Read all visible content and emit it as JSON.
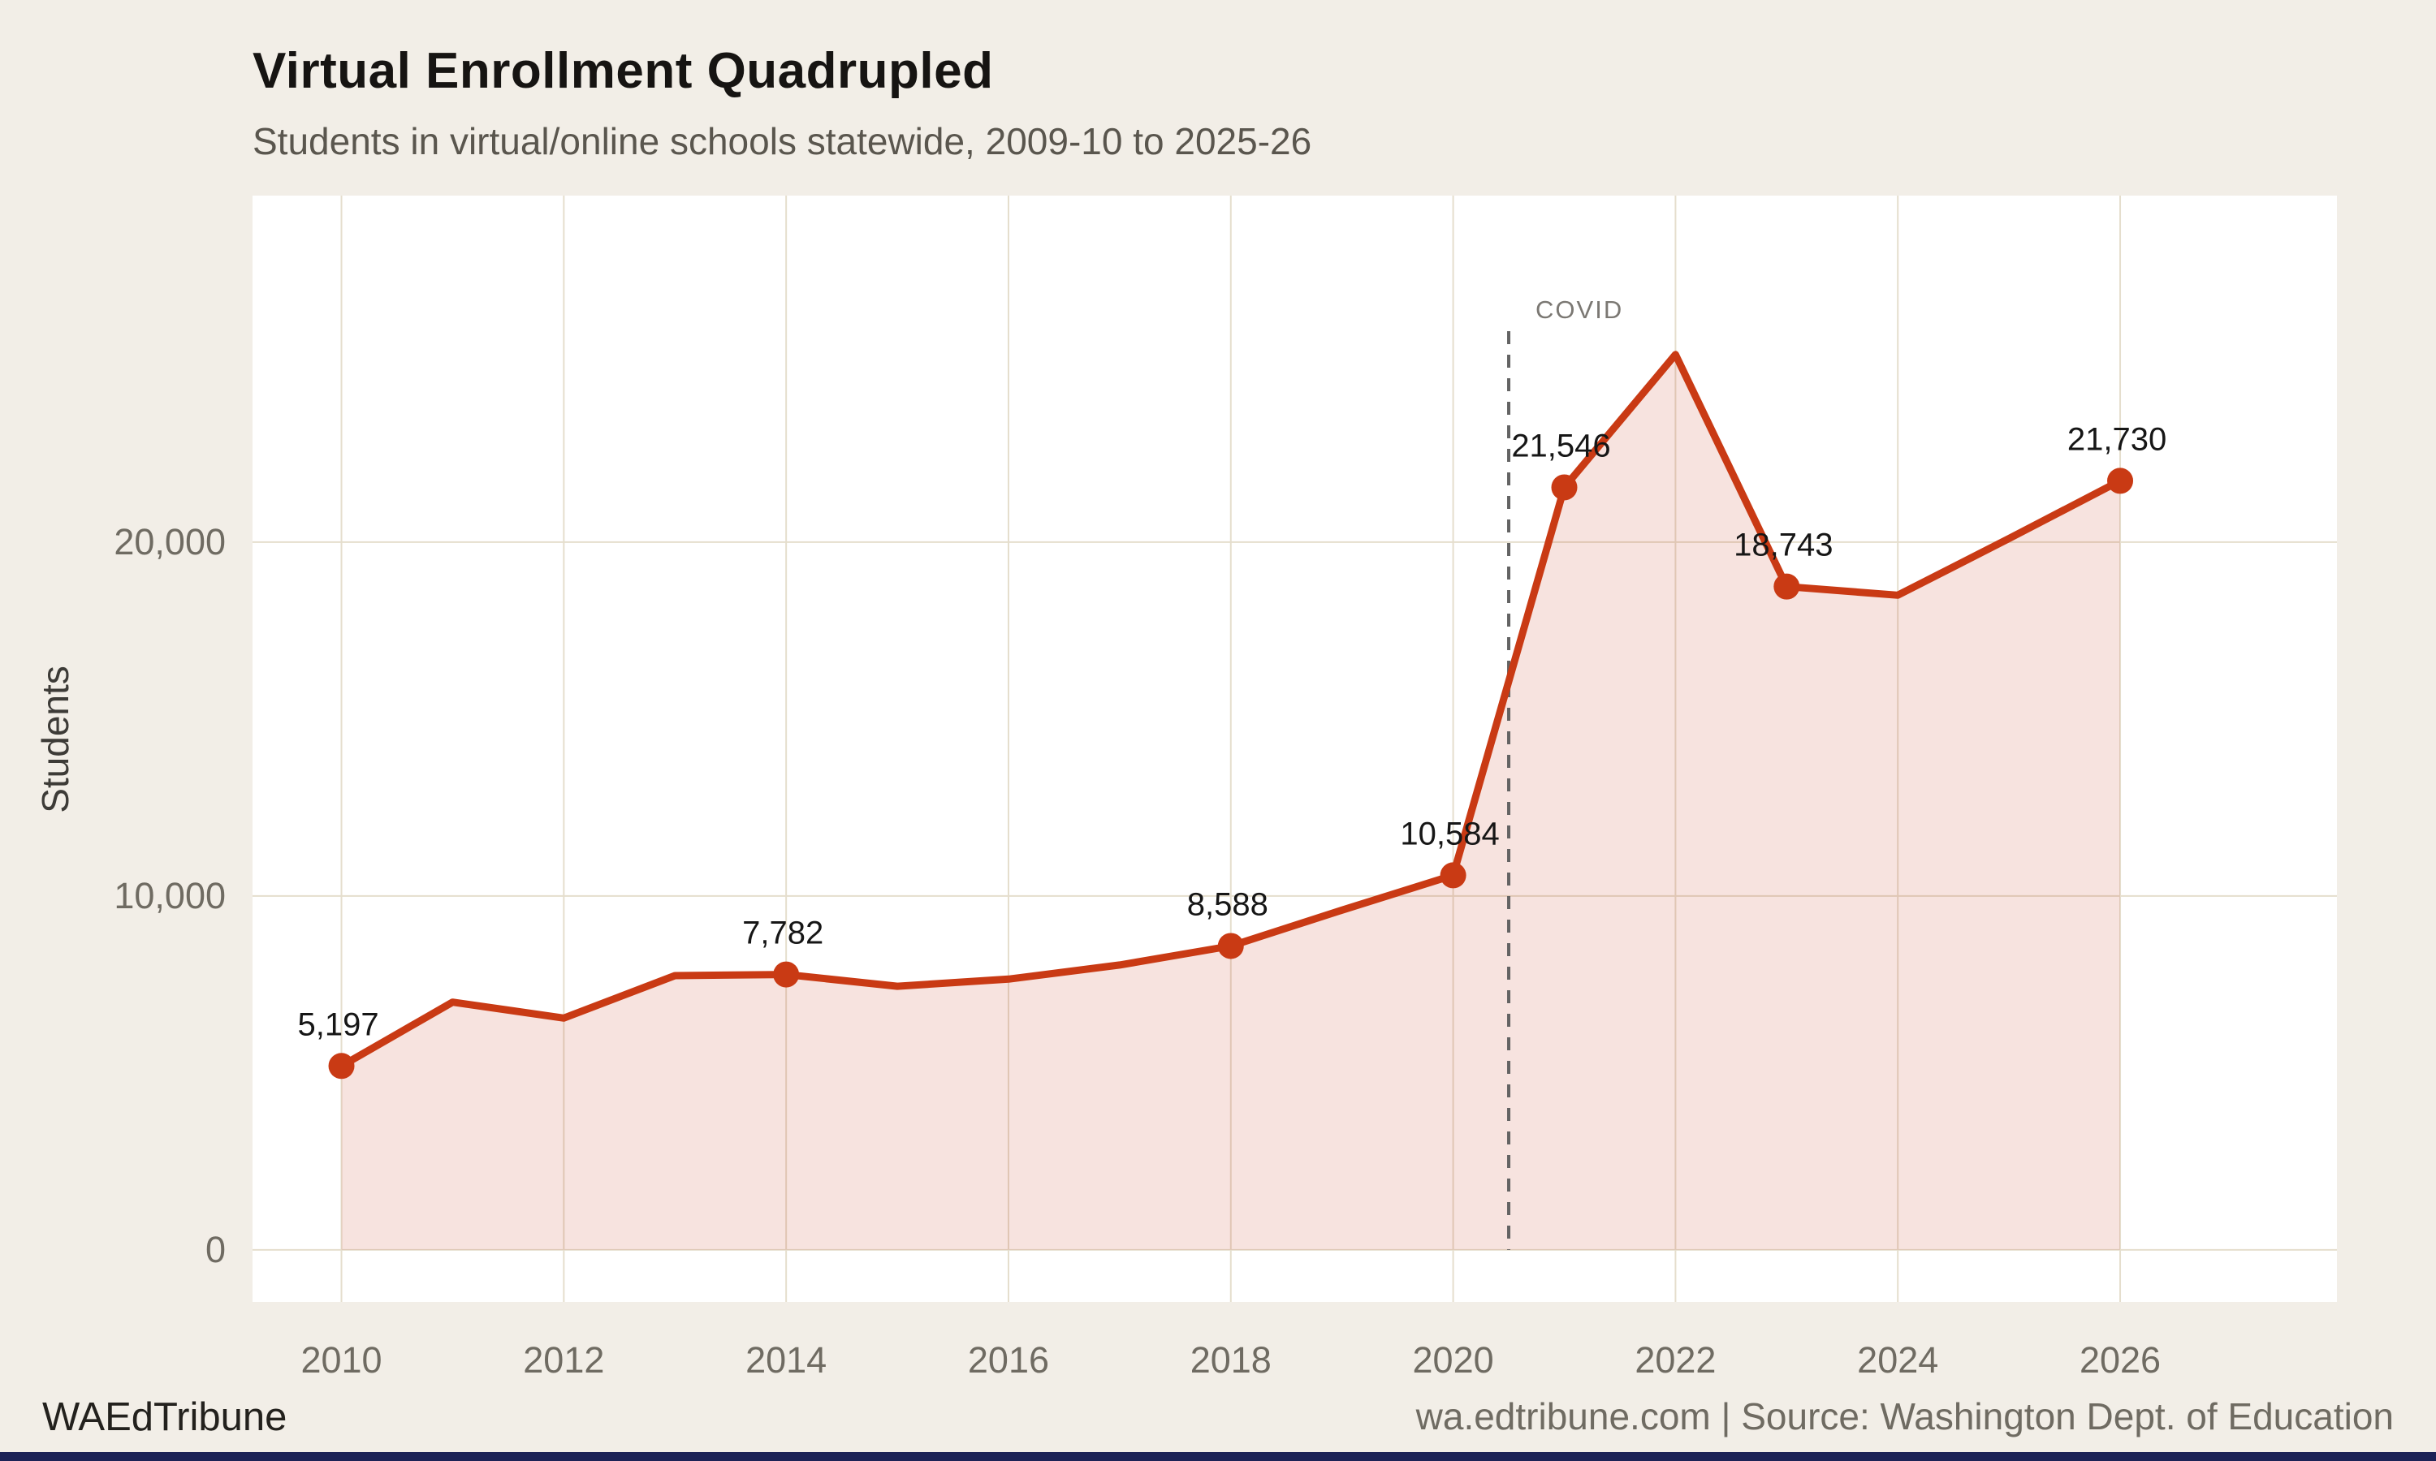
{
  "chart_data": {
    "type": "area",
    "title": "Virtual Enrollment Quadrupled",
    "subtitle": "Students in virtual/online schools statewide, 2009-10 to 2025-26",
    "xlabel": "",
    "ylabel": "Students",
    "x": [
      2010,
      2011,
      2012,
      2013,
      2014,
      2015,
      2016,
      2017,
      2018,
      2019,
      2020,
      2021,
      2022,
      2023,
      2024,
      2025,
      2026
    ],
    "values": [
      5197,
      7000,
      6550,
      7750,
      7782,
      7450,
      7650,
      8050,
      8588,
      9600,
      10584,
      21546,
      25300,
      18743,
      18500,
      20100,
      21730
    ],
    "point_labels": [
      {
        "year": 2010,
        "text": "5,197"
      },
      {
        "year": 2014,
        "text": "7,782"
      },
      {
        "year": 2018,
        "text": "8,588"
      },
      {
        "year": 2020,
        "text": "10,584"
      },
      {
        "year": 2021,
        "text": "21,546"
      },
      {
        "year": 2023,
        "text": "18,743"
      },
      {
        "year": 2026,
        "text": "21,730"
      }
    ],
    "x_ticks": [
      2010,
      2012,
      2014,
      2016,
      2018,
      2020,
      2022,
      2024,
      2026
    ],
    "y_ticks": [
      {
        "value": 0,
        "label": "0"
      },
      {
        "value": 10000,
        "label": "10,000"
      },
      {
        "value": 20000,
        "label": "20,000"
      }
    ],
    "xlim": [
      2009.2,
      2027.95
    ],
    "ylim": [
      -1470,
      29790
    ],
    "grid": true,
    "legend": "none",
    "annotation": {
      "label": "COVID",
      "x": 2020.5
    },
    "colors": {
      "line": "#c93a14",
      "area": "rgba(200, 60, 30, 0.14)",
      "grid": "#e5decd",
      "plot_bg": "#ffffff",
      "page_bg": "#f2eee7",
      "dashed": "#636363",
      "accent_strip": "#1c2256"
    }
  },
  "footer": {
    "brand": "WAEdTribune",
    "source": "wa.edtribune.com | Source: Washington Dept. of Education"
  }
}
